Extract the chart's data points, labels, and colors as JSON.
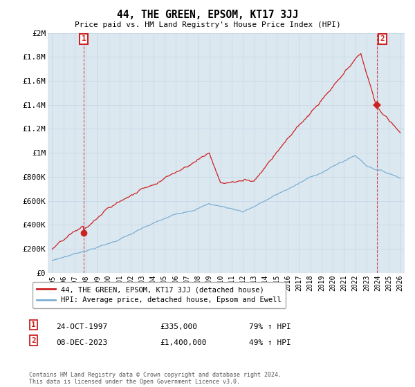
{
  "title": "44, THE GREEN, EPSOM, KT17 3JJ",
  "subtitle": "Price paid vs. HM Land Registry's House Price Index (HPI)",
  "hpi_label": "HPI: Average price, detached house, Epsom and Ewell",
  "property_label": "44, THE GREEN, EPSOM, KT17 3JJ (detached house)",
  "footer": "Contains HM Land Registry data © Crown copyright and database right 2024.\nThis data is licensed under the Open Government Licence v3.0.",
  "annotation1": {
    "num": "1",
    "date": "24-OCT-1997",
    "price": "£335,000",
    "pct": "79% ↑ HPI"
  },
  "annotation2": {
    "num": "2",
    "date": "08-DEC-2023",
    "price": "£1,400,000",
    "pct": "49% ↑ HPI"
  },
  "ylim": [
    0,
    2000000
  ],
  "yticks": [
    0,
    200000,
    400000,
    600000,
    800000,
    1000000,
    1200000,
    1400000,
    1600000,
    1800000,
    2000000
  ],
  "ytick_labels": [
    "£0",
    "£200K",
    "£400K",
    "£600K",
    "£800K",
    "£1M",
    "£1.2M",
    "£1.4M",
    "£1.6M",
    "£1.8M",
    "£2M"
  ],
  "hpi_color": "#7bafd4",
  "price_color": "#cc2222",
  "annotation_box_color": "#cc2222",
  "grid_color": "#c8d8e8",
  "plot_bg_color": "#dce8f0",
  "background_color": "#ffffff",
  "sale1_x": 1997.82,
  "sale1_y": 335000,
  "sale2_x": 2023.94,
  "sale2_y": 1400000,
  "xlim_left": 1994.6,
  "xlim_right": 2026.4
}
